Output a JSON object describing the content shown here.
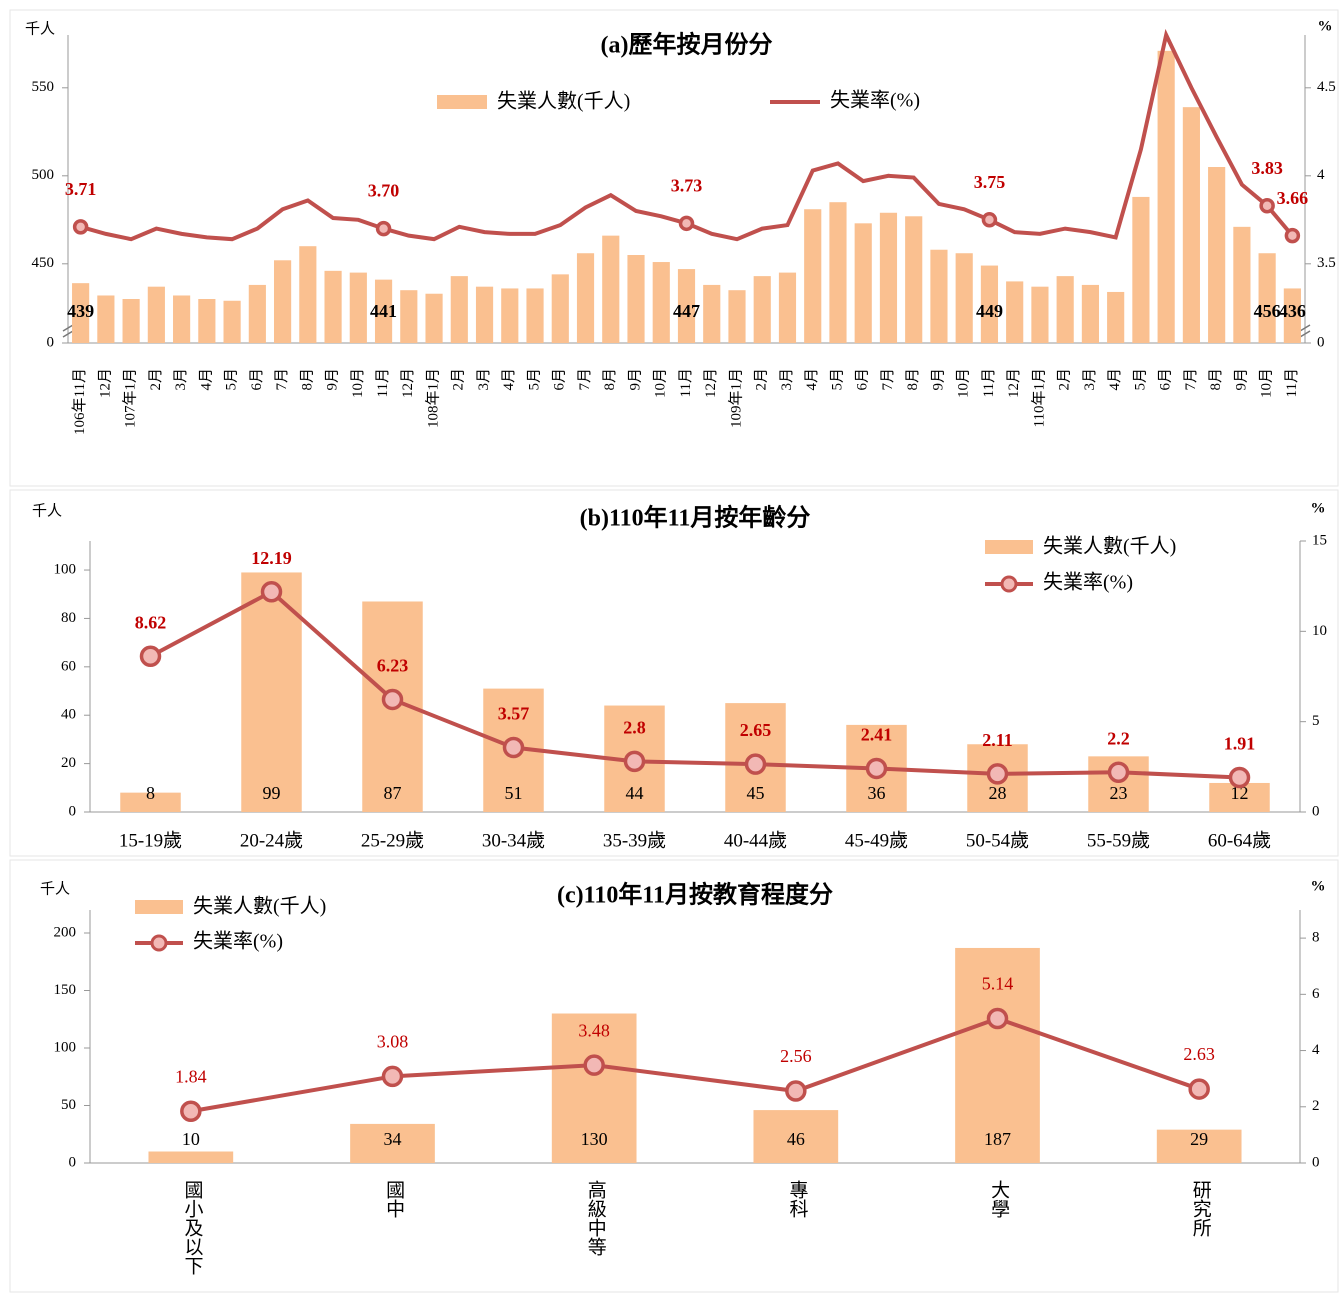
{
  "chart_data": [
    {
      "type": "bar_line",
      "title": "(a)歷年按月份分",
      "y_unit": "千人",
      "y2_unit": "%",
      "legend": "top",
      "axis_break": true,
      "categories": [
        "106年11月",
        "12月",
        "107年1月",
        "2月",
        "3月",
        "4月",
        "5月",
        "6月",
        "7月",
        "8月",
        "9月",
        "10月",
        "11月",
        "12月",
        "108年1月",
        "2月",
        "3月",
        "4月",
        "5月",
        "6月",
        "7月",
        "8月",
        "9月",
        "10月",
        "11月",
        "12月",
        "109年1月",
        "2月",
        "3月",
        "4月",
        "5月",
        "6月",
        "7月",
        "8月",
        "9月",
        "10月",
        "11月",
        "12月",
        "110年1月",
        "2月",
        "3月",
        "4月",
        "5月",
        "6月",
        "7月",
        "8月",
        "9月",
        "10月",
        "11月"
      ],
      "series": [
        {
          "name": "失業人數(千人)",
          "color": "#fac090",
          "values": [
            439,
            432,
            430,
            437,
            432,
            430,
            429,
            438,
            452,
            460,
            446,
            445,
            441,
            435,
            433,
            443,
            437,
            436,
            436,
            444,
            456,
            466,
            455,
            451,
            447,
            438,
            435,
            443,
            445,
            481,
            485,
            473,
            479,
            477,
            458,
            456,
            449,
            440,
            437,
            443,
            438,
            434,
            488,
            571,
            539,
            505,
            471,
            456,
            436
          ],
          "value_labels": [
            "439",
            null,
            null,
            null,
            null,
            null,
            null,
            null,
            null,
            null,
            null,
            null,
            "441",
            null,
            null,
            null,
            null,
            null,
            null,
            null,
            null,
            null,
            null,
            null,
            "447",
            null,
            null,
            null,
            null,
            null,
            null,
            null,
            null,
            null,
            null,
            null,
            "449",
            null,
            null,
            null,
            null,
            null,
            null,
            null,
            null,
            null,
            null,
            "456",
            "436"
          ]
        },
        {
          "name": "失業率(%)",
          "color": "#c0504d",
          "axis": "y2",
          "values": [
            3.71,
            3.67,
            3.64,
            3.7,
            3.67,
            3.65,
            3.64,
            3.7,
            3.81,
            3.86,
            3.76,
            3.75,
            3.7,
            3.66,
            3.64,
            3.71,
            3.68,
            3.67,
            3.67,
            3.72,
            3.82,
            3.89,
            3.8,
            3.77,
            3.73,
            3.67,
            3.64,
            3.7,
            3.72,
            4.03,
            4.07,
            3.97,
            4.0,
            3.99,
            3.84,
            3.81,
            3.75,
            3.68,
            3.67,
            3.7,
            3.68,
            3.65,
            4.15,
            4.8,
            4.5,
            4.22,
            3.95,
            3.83,
            3.66
          ],
          "value_labels": [
            "3.71",
            null,
            null,
            null,
            null,
            null,
            null,
            null,
            null,
            null,
            null,
            null,
            "3.70",
            null,
            null,
            null,
            null,
            null,
            null,
            null,
            null,
            null,
            null,
            null,
            "3.73",
            null,
            null,
            null,
            null,
            null,
            null,
            null,
            null,
            null,
            null,
            null,
            "3.75",
            null,
            null,
            null,
            null,
            null,
            null,
            null,
            null,
            null,
            null,
            "3.83",
            "3.66"
          ]
        }
      ],
      "ylim": [
        0,
        580
      ],
      "yticks": [
        0,
        450,
        500,
        550
      ],
      "y2lim": [
        0,
        4.8
      ],
      "y2ticks": [
        0,
        {
          "value": 3.5,
          "label": "3.5"
        },
        4,
        {
          "value": 4.5,
          "label": "4.5"
        }
      ]
    },
    {
      "type": "bar_line",
      "title": "(b)110年11月按年齡分",
      "y_unit": "千人",
      "y2_unit": "%",
      "legend": "upper right",
      "categories": [
        "15-19歲",
        "20-24歲",
        "25-29歲",
        "30-34歲",
        "35-39歲",
        "40-44歲",
        "45-49歲",
        "50-54歲",
        "55-59歲",
        "60-64歲"
      ],
      "series": [
        {
          "name": "失業人數(千人)",
          "color": "#fac090",
          "values": [
            8,
            99,
            87,
            51,
            44,
            45,
            36,
            28,
            23,
            12
          ],
          "value_labels": [
            "8",
            "99",
            "87",
            "51",
            "44",
            "45",
            "36",
            "28",
            "23",
            "12"
          ]
        },
        {
          "name": "失業率(%)",
          "color": "#c0504d",
          "axis": "y2",
          "values": [
            8.62,
            12.19,
            6.23,
            3.57,
            2.8,
            2.65,
            2.41,
            2.11,
            2.2,
            1.91
          ],
          "value_labels": [
            "8.62",
            "12.19",
            "6.23",
            "3.57",
            "2.8",
            "2.65",
            "2.41",
            "2.11",
            "2.2",
            "1.91"
          ]
        }
      ],
      "ylim": [
        0,
        112
      ],
      "yticks": [
        0,
        20,
        40,
        60,
        80,
        100
      ],
      "y2lim": [
        0,
        15
      ],
      "y2ticks": [
        0,
        5,
        10,
        15
      ]
    },
    {
      "type": "bar_line",
      "title": "(c)110年11月按教育程度分",
      "y_unit": "千人",
      "y2_unit": "%",
      "legend": "upper left",
      "categories": [
        "國小及以下",
        "國中",
        "高級中等",
        "專科",
        "大學",
        "研究所"
      ],
      "series": [
        {
          "name": "失業人數(千人)",
          "color": "#fac090",
          "values": [
            10,
            34,
            130,
            46,
            187,
            29
          ],
          "value_labels": [
            "10",
            "34",
            "130",
            "46",
            "187",
            "29"
          ]
        },
        {
          "name": "失業率(%)",
          "color": "#c0504d",
          "axis": "y2",
          "values": [
            1.84,
            3.08,
            3.48,
            2.56,
            5.14,
            2.63
          ],
          "value_labels": [
            "1.84",
            "3.08",
            "3.48",
            "2.56",
            "5.14",
            "2.63"
          ]
        }
      ],
      "ylim": [
        0,
        220
      ],
      "yticks": [
        0,
        50,
        100,
        150,
        200
      ],
      "y2lim": [
        0,
        9
      ],
      "y2ticks": [
        0,
        2,
        4,
        6,
        8
      ]
    }
  ]
}
